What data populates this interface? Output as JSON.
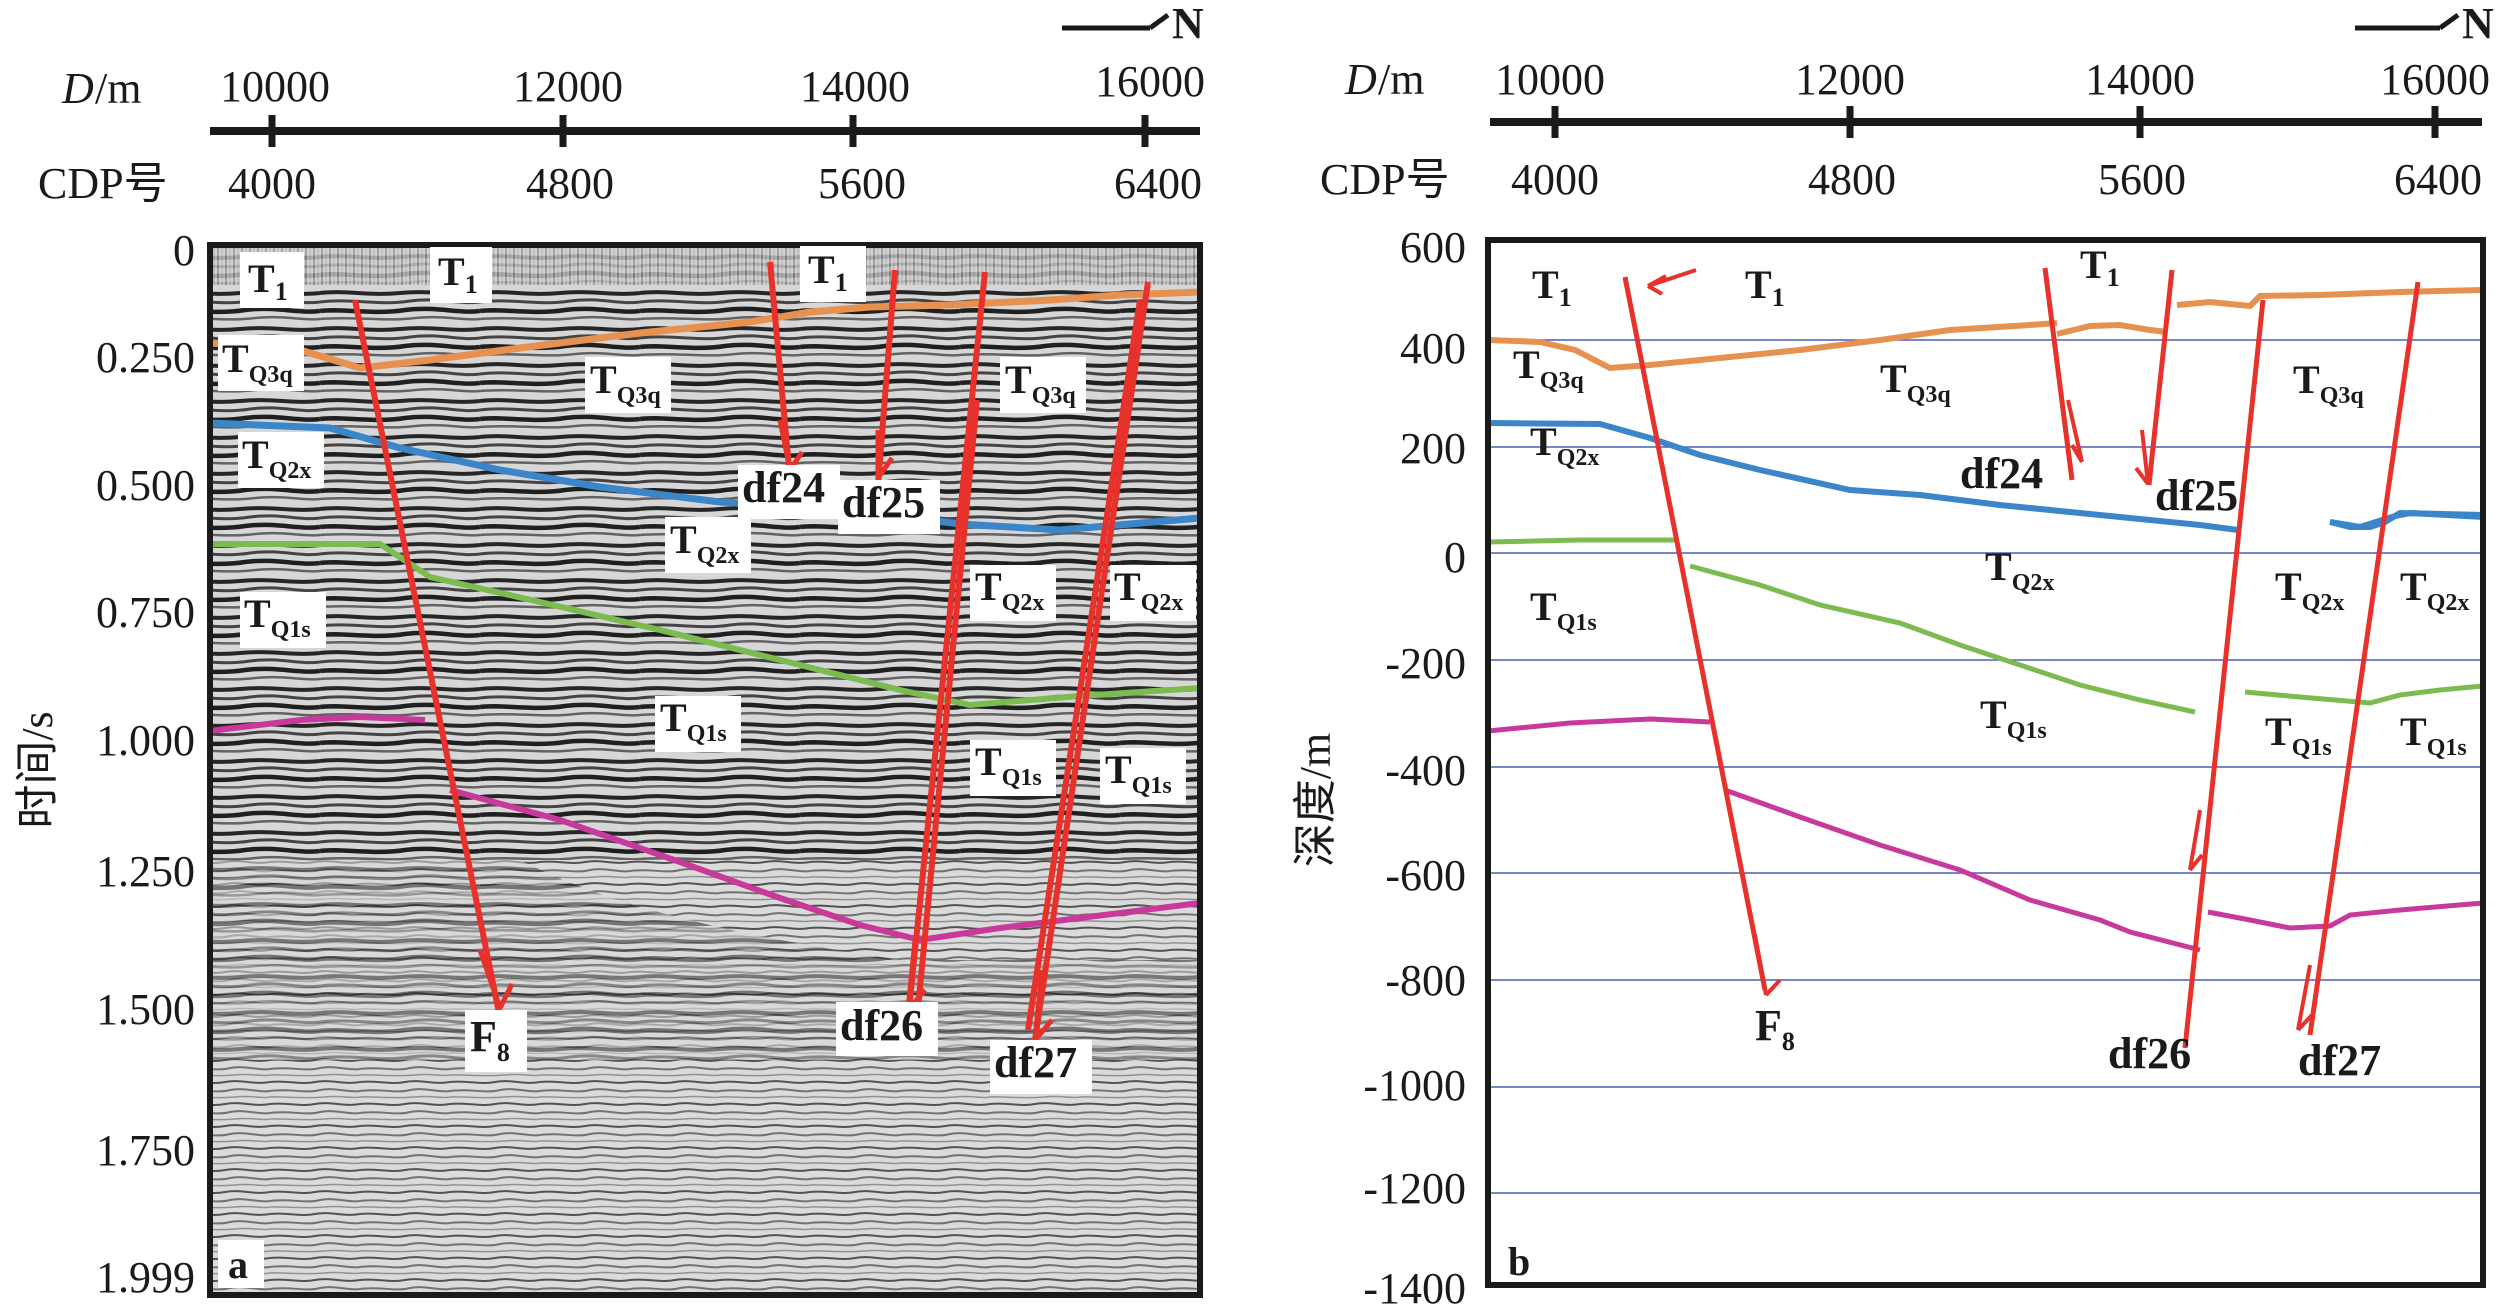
{
  "colors": {
    "fault": "#e8312a",
    "horizon_T1": "#e6914f",
    "horizon_TQ2x": "#3b86c9",
    "horizon_TQ1s": "#7cbb4f",
    "horizon_base": "#c8399c",
    "gridline": "#4a5fb3",
    "frame": "#1a1a1a"
  },
  "north_arrow": {
    "label": "N"
  },
  "scale": {
    "distance_label_italic": "D",
    "distance_label_unit": "/m",
    "cdp_label": "CDP号",
    "distance_ticks": [
      "10000",
      "12000",
      "14000",
      "16000"
    ],
    "cdp_ticks": [
      "4000",
      "4800",
      "5600",
      "6400"
    ]
  },
  "panel_a": {
    "letter": "a",
    "yaxis_title": "时间/s",
    "y_ticks": [
      "0",
      "0.250",
      "0.500",
      "0.750",
      "1.000",
      "1.250",
      "1.500",
      "1.750",
      "1.999"
    ],
    "background": "seismic-section-grayscale",
    "horizon_labels": [
      {
        "base": "T",
        "sub": "1"
      },
      {
        "base": "T",
        "sub": "1"
      },
      {
        "base": "T",
        "sub": "1"
      },
      {
        "base": "T",
        "sub": "Q3q"
      },
      {
        "base": "T",
        "sub": "Q3q"
      },
      {
        "base": "T",
        "sub": "Q3q"
      },
      {
        "base": "T",
        "sub": "Q2x"
      },
      {
        "base": "T",
        "sub": "Q2x"
      },
      {
        "base": "T",
        "sub": "Q2x"
      },
      {
        "base": "T",
        "sub": "Q2x"
      },
      {
        "base": "T",
        "sub": "Q1s"
      },
      {
        "base": "T",
        "sub": "Q1s"
      },
      {
        "base": "T",
        "sub": "Q1s"
      },
      {
        "base": "T",
        "sub": "Q1s"
      }
    ],
    "fault_labels": [
      {
        "base": "F",
        "sub": "8"
      },
      {
        "base": "df24",
        "sub": ""
      },
      {
        "base": "df25",
        "sub": ""
      },
      {
        "base": "df26",
        "sub": ""
      },
      {
        "base": "df27",
        "sub": ""
      }
    ]
  },
  "panel_b": {
    "letter": "b",
    "yaxis_title": "深度/m",
    "y_ticks": [
      "600",
      "400",
      "200",
      "0",
      "-200",
      "-400",
      "-600",
      "-800",
      "-1000",
      "-1200",
      "-1400"
    ],
    "horizon_labels": [
      {
        "base": "T",
        "sub": "1"
      },
      {
        "base": "T",
        "sub": "1"
      },
      {
        "base": "T",
        "sub": "1"
      },
      {
        "base": "T",
        "sub": "Q3q"
      },
      {
        "base": "T",
        "sub": "Q3q"
      },
      {
        "base": "T",
        "sub": "Q3q"
      },
      {
        "base": "T",
        "sub": "Q2x"
      },
      {
        "base": "T",
        "sub": "Q2x"
      },
      {
        "base": "T",
        "sub": "Q2x"
      },
      {
        "base": "T",
        "sub": "Q2x"
      },
      {
        "base": "T",
        "sub": "Q1s"
      },
      {
        "base": "T",
        "sub": "Q1s"
      },
      {
        "base": "T",
        "sub": "Q1s"
      },
      {
        "base": "T",
        "sub": "Q1s"
      }
    ],
    "fault_labels": [
      {
        "base": "F",
        "sub": "8"
      },
      {
        "base": "df24",
        "sub": ""
      },
      {
        "base": "df25",
        "sub": ""
      },
      {
        "base": "df26",
        "sub": ""
      },
      {
        "base": "df27",
        "sub": ""
      }
    ]
  }
}
